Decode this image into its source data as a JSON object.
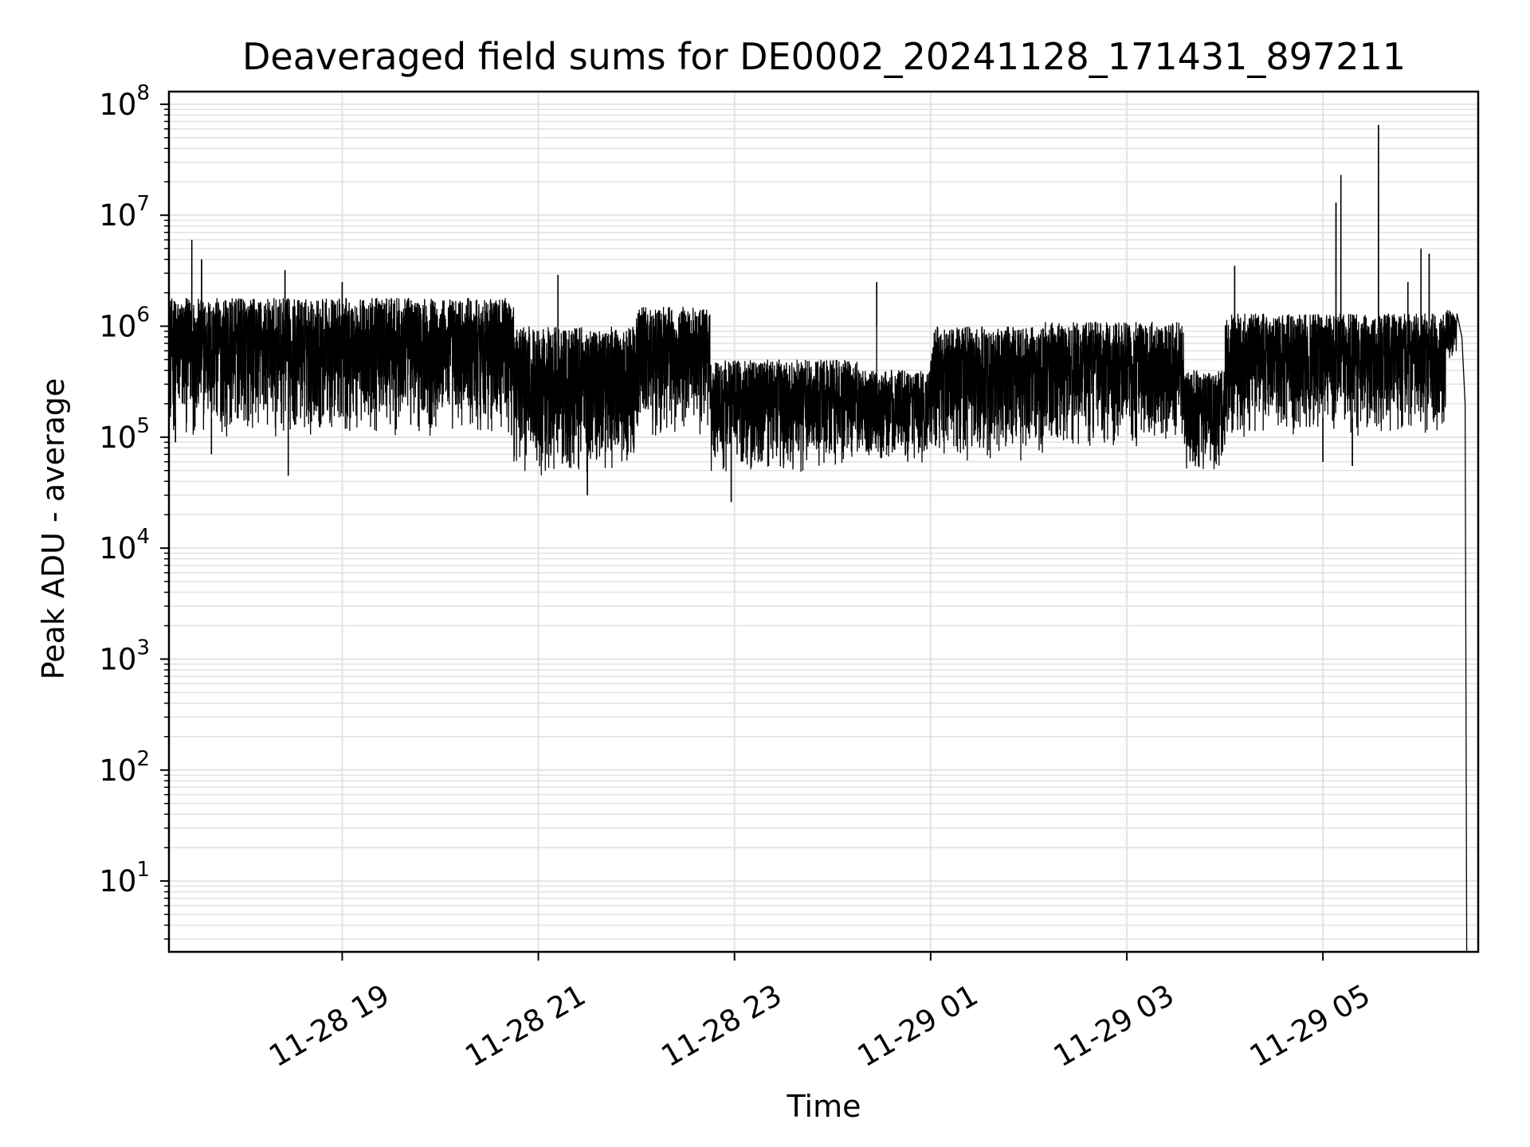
{
  "chart_data": {
    "type": "line",
    "title": "Deaveraged field sums for DE0002_20241128_171431_897211",
    "xlabel": "Time",
    "ylabel": "Peak ADU - average",
    "xscale": "time",
    "yscale": "log",
    "grid": true,
    "legend": "none",
    "line_color": "#000000",
    "grid_color": "#e3e3e3",
    "xlim": [
      "2024-11-28 17:14",
      "2024-11-29 06:35"
    ],
    "ylim": [
      2.3,
      130000000
    ],
    "x_ticks": [
      {
        "value": "2024-11-28 19:00",
        "label": "11-28 19"
      },
      {
        "value": "2024-11-28 21:00",
        "label": "11-28 21"
      },
      {
        "value": "2024-11-28 23:00",
        "label": "11-28 23"
      },
      {
        "value": "2024-11-29 01:00",
        "label": "11-29 01"
      },
      {
        "value": "2024-11-29 03:00",
        "label": "11-29 03"
      },
      {
        "value": "2024-11-29 05:00",
        "label": "11-29 05"
      }
    ],
    "y_ticks": [
      {
        "value": 10,
        "base": "10",
        "exp": "1"
      },
      {
        "value": 100,
        "base": "10",
        "exp": "2"
      },
      {
        "value": 1000,
        "base": "10",
        "exp": "3"
      },
      {
        "value": 10000,
        "base": "10",
        "exp": "4"
      },
      {
        "value": 100000,
        "base": "10",
        "exp": "5"
      },
      {
        "value": 1000000,
        "base": "10",
        "exp": "6"
      },
      {
        "value": 10000000,
        "base": "10",
        "exp": "7"
      },
      {
        "value": 100000000,
        "base": "10",
        "exp": "8"
      }
    ],
    "series": [
      {
        "segments": [
          {
            "start": "2024-11-28 17:14",
            "end": "2024-11-28 20:45",
            "low": 100000,
            "high": 1800000
          },
          {
            "start": "2024-11-28 20:45",
            "end": "2024-11-28 22:00",
            "low": 45000,
            "high": 1000000
          },
          {
            "start": "2024-11-28 22:00",
            "end": "2024-11-28 22:45",
            "low": 100000,
            "high": 1500000
          },
          {
            "start": "2024-11-28 22:45",
            "end": "2024-11-29 00:15",
            "low": 45000,
            "high": 500000
          },
          {
            "start": "2024-11-29 00:15",
            "end": "2024-11-29 01:00",
            "low": 55000,
            "high": 400000
          },
          {
            "start": "2024-11-29 01:00",
            "end": "2024-11-29 02:10",
            "low": 60000,
            "high": 1000000
          },
          {
            "start": "2024-11-29 02:10",
            "end": "2024-11-29 03:35",
            "low": 80000,
            "high": 1100000
          },
          {
            "start": "2024-11-29 03:35",
            "end": "2024-11-29 04:00",
            "low": 45000,
            "high": 400000
          },
          {
            "start": "2024-11-29 04:00",
            "end": "2024-11-29 06:15",
            "low": 100000,
            "high": 1300000
          },
          {
            "start": "2024-11-29 06:15",
            "end": "2024-11-29 06:22",
            "low": 500000,
            "high": 1400000
          }
        ],
        "spikes": [
          {
            "t": "2024-11-28 17:14",
            "v": 3000000
          },
          {
            "t": "2024-11-28 17:18",
            "v": 90000
          },
          {
            "t": "2024-11-28 17:28",
            "v": 6000000
          },
          {
            "t": "2024-11-28 17:34",
            "v": 4000000
          },
          {
            "t": "2024-11-28 17:40",
            "v": 70000
          },
          {
            "t": "2024-11-28 18:25",
            "v": 3200000
          },
          {
            "t": "2024-11-28 18:27",
            "v": 45000
          },
          {
            "t": "2024-11-28 19:00",
            "v": 2500000
          },
          {
            "t": "2024-11-28 21:12",
            "v": 2900000
          },
          {
            "t": "2024-11-28 21:30",
            "v": 30000
          },
          {
            "t": "2024-11-28 22:58",
            "v": 26000
          },
          {
            "t": "2024-11-29 00:27",
            "v": 2500000
          },
          {
            "t": "2024-11-29 04:06",
            "v": 3500000
          },
          {
            "t": "2024-11-29 05:00",
            "v": 60000
          },
          {
            "t": "2024-11-29 05:08",
            "v": 13000000
          },
          {
            "t": "2024-11-29 05:11",
            "v": 23000000
          },
          {
            "t": "2024-11-29 05:18",
            "v": 55000
          },
          {
            "t": "2024-11-29 05:34",
            "v": 65000000
          },
          {
            "t": "2024-11-29 05:52",
            "v": 2500000
          },
          {
            "t": "2024-11-29 06:00",
            "v": 5000000
          },
          {
            "t": "2024-11-29 06:05",
            "v": 4500000
          }
        ],
        "drop": [
          {
            "t": "2024-11-29 06:22",
            "v": 1300000
          },
          {
            "t": "2024-11-29 06:25",
            "v": 800000
          },
          {
            "t": "2024-11-29 06:27",
            "v": 200000
          },
          {
            "t": "2024-11-29 06:28",
            "v": 2.3
          }
        ]
      }
    ]
  }
}
